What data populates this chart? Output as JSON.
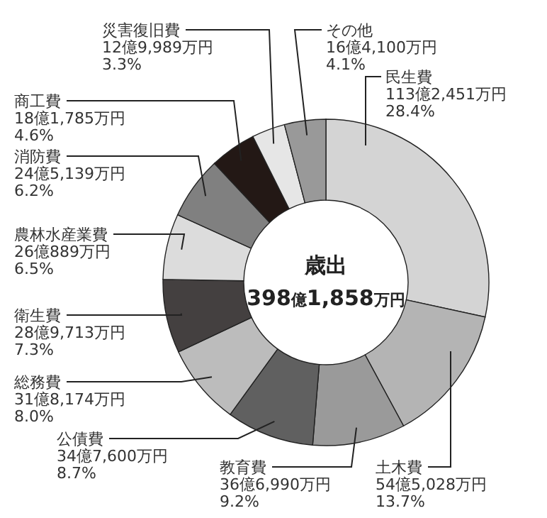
{
  "chart_data": {
    "type": "donut",
    "title": "歳出",
    "subtitle": "398億1,858万円",
    "categories": [
      "民生費",
      "土木費",
      "教育費",
      "公債費",
      "総務費",
      "衛生費",
      "農林水産業費",
      "消防費",
      "商工費",
      "災害復旧費",
      "その他"
    ],
    "values": [
      28.4,
      13.7,
      9.2,
      8.7,
      8.0,
      7.3,
      6.5,
      6.2,
      4.6,
      3.3,
      4.1
    ],
    "value_labels": [
      "113億2,451万円\n28.4%",
      "54億5,028万円\n13.7%",
      "36億6,990万円\n9.2%",
      "34億7,600万円\n8.7%",
      "31億8,174万円\n8.0%",
      "28億9,713万円\n7.3%",
      "26億889万円\n6.5%",
      "24億5,139万円\n6.2%",
      "18億1,785万円\n4.6%",
      "12億9,989万円\n3.3%",
      "16億4,100万円\n4.1%"
    ],
    "colors": [
      "#d4d4d4",
      "#b4b4b4",
      "#9a9a9a",
      "#606060",
      "#bcbcbc",
      "#444040",
      "#dcdcdc",
      "#808080",
      "#231815",
      "#e6e6e6",
      "#999999"
    ]
  }
}
